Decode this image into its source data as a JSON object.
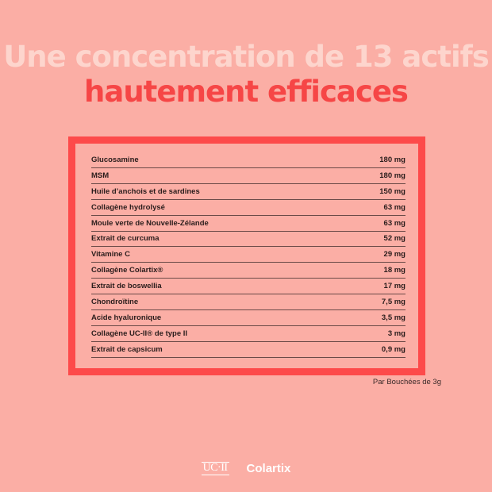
{
  "title": {
    "line1": "Une concentration de 13 actifs",
    "line2": "hautement efficaces"
  },
  "table": {
    "rows": [
      {
        "name": "Glucosamine",
        "amount": "180 mg"
      },
      {
        "name": "MSM",
        "amount": "180 mg"
      },
      {
        "name": "Huile d’anchois et de sardines",
        "amount": "150 mg"
      },
      {
        "name": "Collagène hydrolysé",
        "amount": "63 mg"
      },
      {
        "name": "Moule verte de Nouvelle-Zélande",
        "amount": "63 mg"
      },
      {
        "name": "Extrait de curcuma",
        "amount": "52 mg"
      },
      {
        "name": "Vitamine C",
        "amount": "29 mg"
      },
      {
        "name": "Collagène Colartix®",
        "amount": "18 mg"
      },
      {
        "name": "Extrait de boswellia",
        "amount": "17 mg"
      },
      {
        "name": "Chondroïtine",
        "amount": "7,5 mg"
      },
      {
        "name": "Acide hyaluronique",
        "amount": "3,5 mg"
      },
      {
        "name": "Collagène UC-II® de type II",
        "amount": "3 mg"
      },
      {
        "name": "Extrait de capsicum",
        "amount": "0,9 mg"
      }
    ]
  },
  "note": "Par Bouchées de 3g",
  "logos": {
    "uc2": "UC·II",
    "colartix": "Colartix"
  },
  "colors": {
    "background": "#fbaea5",
    "accent": "#fd4a4a",
    "title_light": "#fdd5cd"
  }
}
